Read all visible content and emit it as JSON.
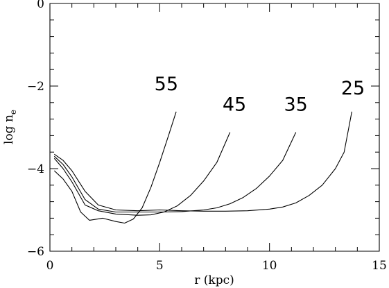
{
  "chart_data": {
    "type": "line",
    "title": "",
    "xlabel": "r (kpc)",
    "ylabel": "log n",
    "ylabel_subscript": "e",
    "xlim": [
      0,
      15
    ],
    "ylim": [
      -6,
      0
    ],
    "x_ticks": [
      0,
      5,
      10,
      15
    ],
    "x_tick_labels": [
      "0",
      "5",
      "10",
      "15"
    ],
    "y_ticks": [
      -6,
      -4,
      -2,
      0
    ],
    "y_tick_labels": [
      "−6",
      "−4",
      "−2",
      "0"
    ],
    "grid": false,
    "legend": "none",
    "series": [
      {
        "name": "25",
        "label_at": [
          13.8,
          -2.2
        ],
        "x": [
          0.2,
          0.6,
          1.0,
          1.6,
          2.2,
          3.0,
          4.0,
          5.0,
          6.0,
          7.0,
          8.0,
          9.0,
          10.0,
          10.6,
          11.2,
          11.8,
          12.4,
          13.0,
          13.4,
          13.75
        ],
        "y": [
          -3.65,
          -3.8,
          -4.05,
          -4.55,
          -4.88,
          -5.0,
          -5.02,
          -5.0,
          -5.02,
          -5.03,
          -5.03,
          -5.02,
          -4.98,
          -4.93,
          -4.83,
          -4.65,
          -4.4,
          -4.0,
          -3.6,
          -2.62
        ]
      },
      {
        "name": "35",
        "label_at": [
          11.2,
          -2.6
        ],
        "x": [
          0.2,
          0.6,
          1.0,
          1.6,
          2.2,
          3.0,
          4.0,
          5.0,
          6.0,
          7.0,
          7.6,
          8.2,
          8.8,
          9.4,
          10.0,
          10.6,
          11.2
        ],
        "y": [
          -3.7,
          -3.9,
          -4.2,
          -4.75,
          -4.98,
          -5.05,
          -5.05,
          -5.05,
          -5.04,
          -5.0,
          -4.95,
          -4.85,
          -4.7,
          -4.48,
          -4.18,
          -3.8,
          -3.12
        ]
      },
      {
        "name": "45",
        "label_at": [
          8.4,
          -2.6
        ],
        "x": [
          0.2,
          0.6,
          1.0,
          1.6,
          2.2,
          3.0,
          4.0,
          4.6,
          5.2,
          5.8,
          6.4,
          7.0,
          7.6,
          8.2
        ],
        "y": [
          -3.75,
          -4.0,
          -4.32,
          -4.88,
          -5.02,
          -5.1,
          -5.13,
          -5.12,
          -5.05,
          -4.9,
          -4.65,
          -4.3,
          -3.85,
          -3.12
        ]
      },
      {
        "name": "55",
        "label_at": [
          5.3,
          -2.1
        ],
        "x": [
          0.2,
          0.6,
          1.0,
          1.4,
          1.8,
          2.4,
          3.0,
          3.4,
          3.8,
          4.2,
          4.6,
          5.0,
          5.4,
          5.75
        ],
        "y": [
          -4.05,
          -4.25,
          -4.55,
          -5.05,
          -5.25,
          -5.2,
          -5.28,
          -5.32,
          -5.22,
          -4.95,
          -4.45,
          -3.85,
          -3.2,
          -2.62
        ]
      }
    ]
  }
}
